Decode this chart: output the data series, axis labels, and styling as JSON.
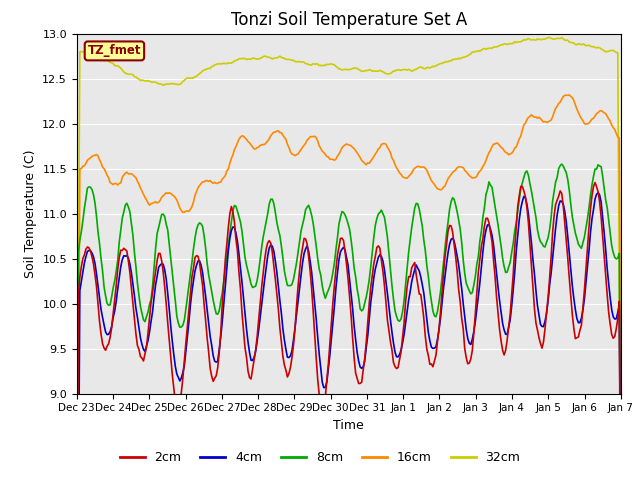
{
  "title": "Tonzi Soil Temperature Set A",
  "xlabel": "Time",
  "ylabel": "Soil Temperature (C)",
  "ylim": [
    9.0,
    13.0
  ],
  "yticks": [
    9.0,
    9.5,
    10.0,
    10.5,
    11.0,
    11.5,
    12.0,
    12.5,
    13.0
  ],
  "xtick_labels": [
    "Dec 23",
    "Dec 24",
    "Dec 25",
    "Dec 26",
    "Dec 27",
    "Dec 28",
    "Dec 29",
    "Dec 30",
    "Dec 31",
    "Jan 1",
    "Jan 2",
    "Jan 3",
    "Jan 4",
    "Jan 5",
    "Jan 6",
    "Jan 7"
  ],
  "colors": {
    "2cm": "#cc0000",
    "4cm": "#0000cc",
    "8cm": "#00aa00",
    "16cm": "#ff8800",
    "32cm": "#cccc00"
  },
  "background_color": "#e8e8e8",
  "annotation_text": "TZ_fmet",
  "annotation_bg": "#ffff99",
  "annotation_border": "#8b0000",
  "legend_entries": [
    "2cm",
    "4cm",
    "8cm",
    "16cm",
    "32cm"
  ]
}
